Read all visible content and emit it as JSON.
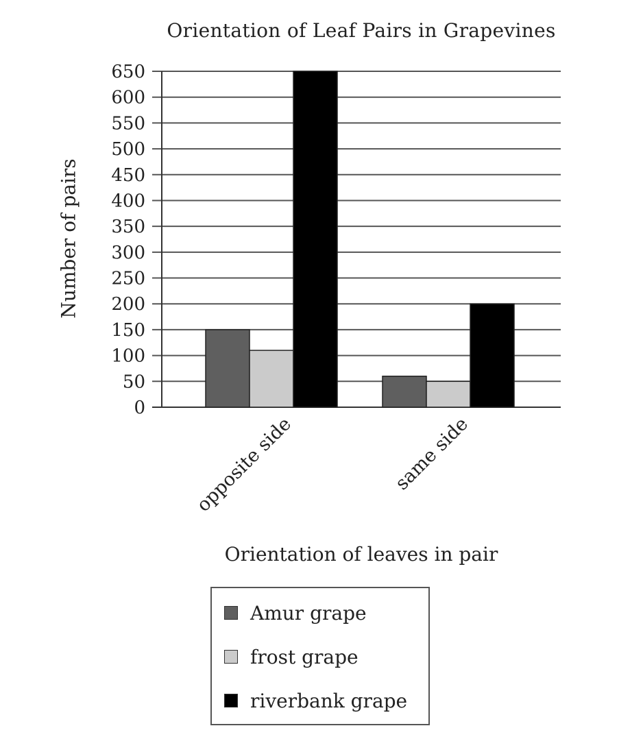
{
  "chart_data": {
    "type": "bar",
    "title": "Orientation of Leaf Pairs in Grapevines",
    "xlabel": "Orientation of leaves in pair",
    "ylabel": "Number of pairs",
    "categories": [
      "opposite side",
      "same side"
    ],
    "series": [
      {
        "name": "Amur grape",
        "values": [
          150,
          60
        ],
        "color": "#5f5f5f"
      },
      {
        "name": "frost grape",
        "values": [
          110,
          50
        ],
        "color": "#cbcbcb"
      },
      {
        "name": "riverbank grape",
        "values": [
          650,
          200
        ],
        "color": "#000000"
      }
    ],
    "yticks": [
      "0",
      "50",
      "100",
      "150",
      "200",
      "250",
      "300",
      "350",
      "400",
      "450",
      "500",
      "550",
      "600",
      "650"
    ],
    "ylim": [
      0,
      650
    ],
    "grid": true,
    "legend_position": "bottom"
  }
}
